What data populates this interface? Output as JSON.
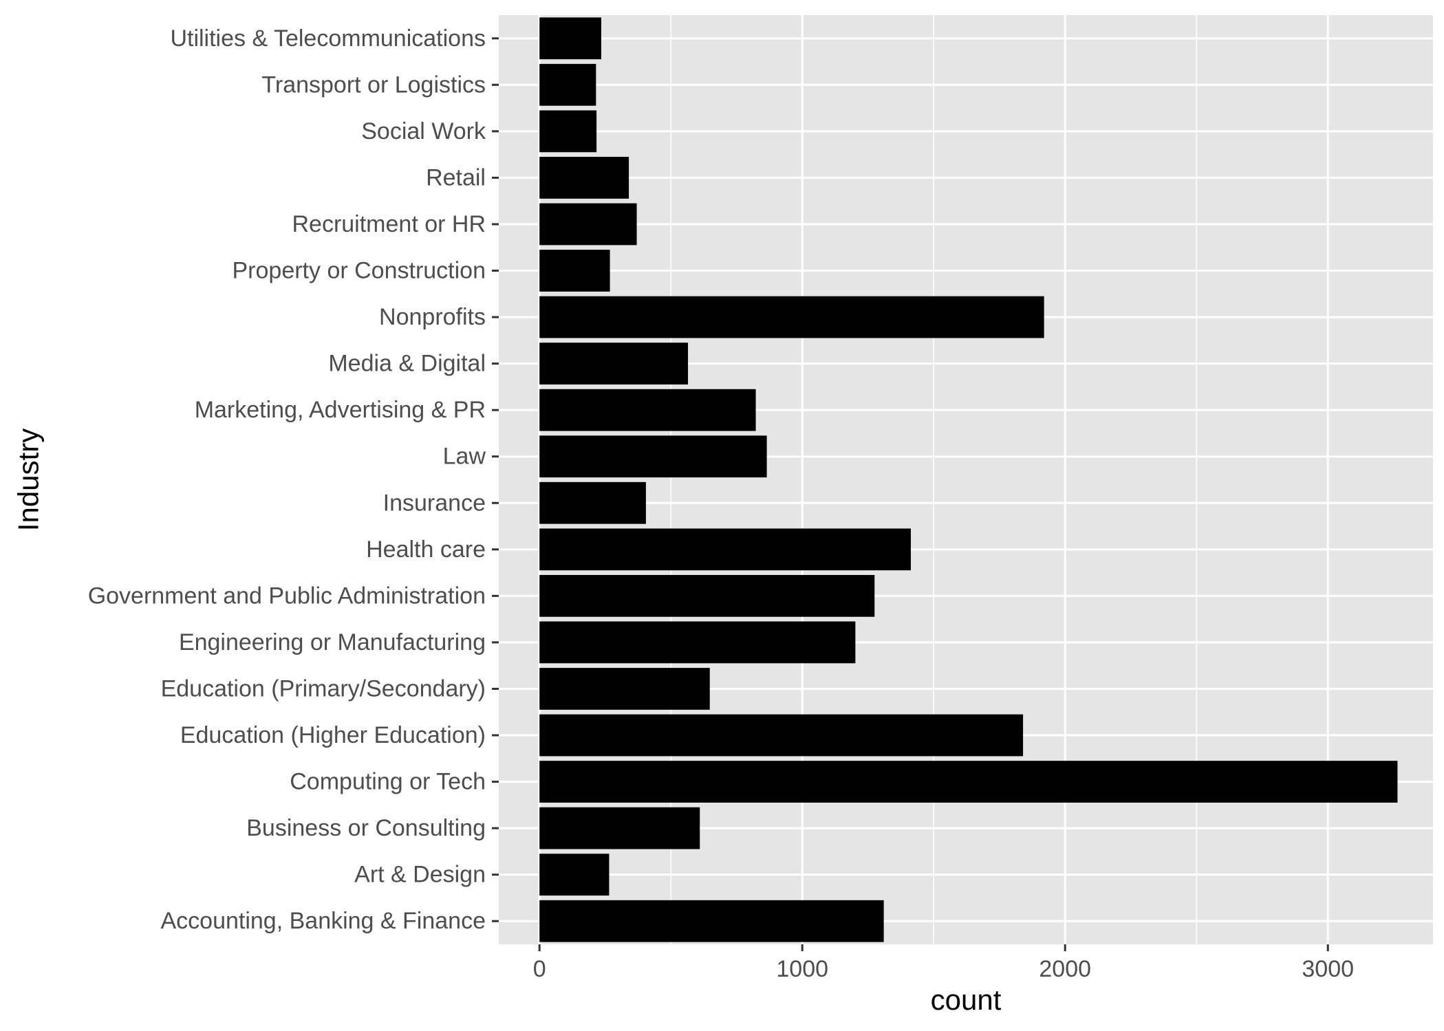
{
  "chart_data": {
    "type": "bar",
    "orientation": "horizontal",
    "xlabel": "count",
    "ylabel": "Industry",
    "xlim": [
      -155,
      3400
    ],
    "x_ticks": [
      0,
      1000,
      2000,
      3000
    ],
    "x_tick_labels": [
      "0",
      "1000",
      "2000",
      "3000"
    ],
    "grid": true,
    "legend": "none",
    "categories": [
      "Accounting, Banking & Finance",
      "Art & Design",
      "Business or Consulting",
      "Computing or Tech",
      "Education (Higher Education)",
      "Education (Primary/Secondary)",
      "Engineering or Manufacturing",
      "Government and Public Administration",
      "Health care",
      "Insurance",
      "Law",
      "Marketing, Advertising & PR",
      "Media & Digital",
      "Nonprofits",
      "Property or Construction",
      "Recruitment or HR",
      "Retail",
      "Social Work",
      "Transport or Logistics",
      "Utilities & Telecommunications"
    ],
    "values": [
      1310,
      265,
      610,
      3265,
      1840,
      648,
      1202,
      1275,
      1413,
      405,
      865,
      823,
      565,
      1920,
      268,
      370,
      340,
      217,
      215,
      235
    ],
    "colors": {
      "panel": "#e5e5e5",
      "grid": "#ffffff",
      "bar": "#000000",
      "tick": "#333333",
      "tick_text": "#4d4d4d"
    }
  }
}
